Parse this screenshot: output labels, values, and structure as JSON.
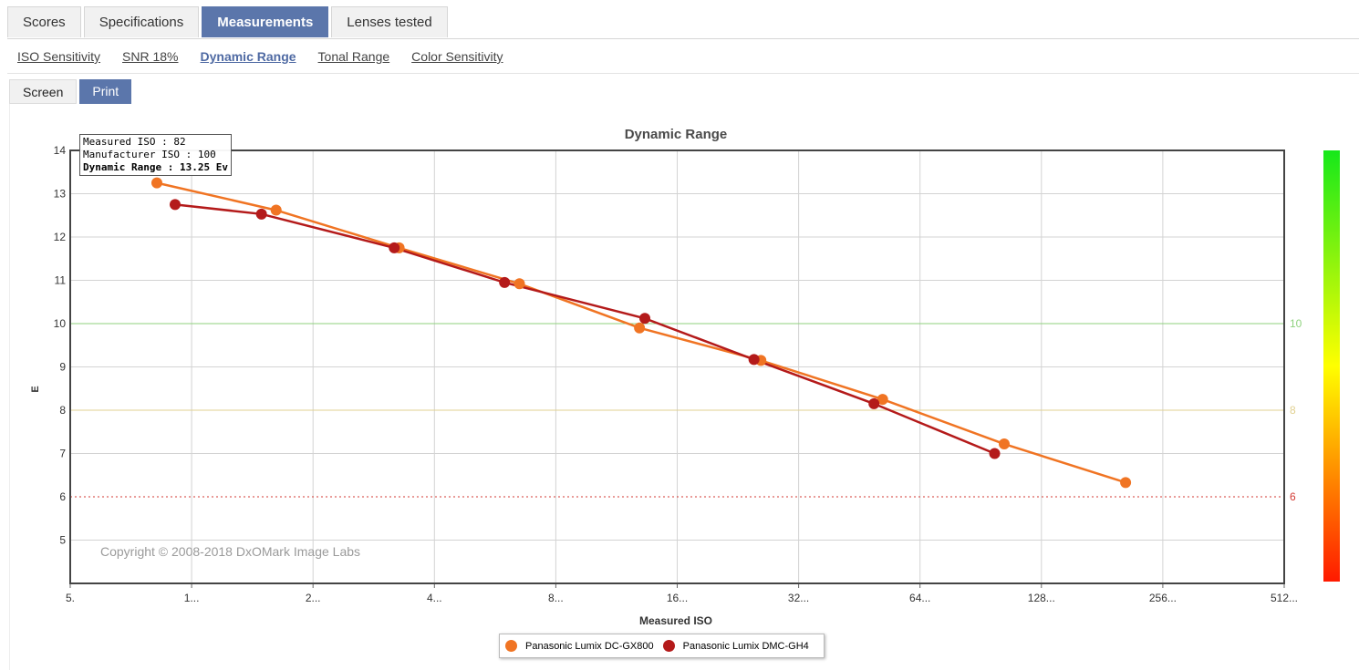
{
  "tabs": [
    {
      "label": "Scores",
      "active": false
    },
    {
      "label": "Specifications",
      "active": false
    },
    {
      "label": "Measurements",
      "active": true
    },
    {
      "label": "Lenses tested",
      "active": false
    }
  ],
  "subnav": [
    {
      "label": "ISO Sensitivity",
      "active": false
    },
    {
      "label": "SNR 18%",
      "active": false
    },
    {
      "label": "Dynamic Range",
      "active": true
    },
    {
      "label": "Tonal Range",
      "active": false
    },
    {
      "label": "Color Sensitivity",
      "active": false
    }
  ],
  "mode_toggle": {
    "screen_label": "Screen",
    "print_label": "Print",
    "active": "Print"
  },
  "tooltip": {
    "line1": "Measured ISO : 82",
    "line2": "Manufacturer ISO : 100",
    "line3": "Dynamic Range : 13.25 Ev"
  },
  "copyright": "Copyright © 2008-2018 DxOMark Image Labs",
  "colors": {
    "gx800": "#f07423",
    "gh4": "#b41a1a",
    "ref10": "#8fd27e",
    "ref8": "#e1d191",
    "ref6": "#d33a33"
  },
  "chart_data": {
    "type": "line",
    "title": "Dynamic Range",
    "xlabel": "Measured ISO",
    "ylabel": "E",
    "x_scale": "log2",
    "x_ticks": [
      50,
      100,
      200,
      400,
      800,
      1600,
      3200,
      6400,
      12800,
      25600,
      51200
    ],
    "x_tick_labels": [
      "5.",
      "1...",
      "2...",
      "4...",
      "8...",
      "16...",
      "32...",
      "64...",
      "128...",
      "256...",
      "512..."
    ],
    "xlim": [
      50,
      51200
    ],
    "ylim": [
      4,
      14
    ],
    "y_ticks": [
      5,
      6,
      7,
      8,
      9,
      10,
      11,
      12,
      13,
      14
    ],
    "reference_lines": [
      {
        "value": 10,
        "label": "10",
        "color": "#8fd27e"
      },
      {
        "value": 8,
        "label": "8",
        "color": "#e1d191"
      },
      {
        "value": 6,
        "label": "6",
        "color": "#d33a33"
      }
    ],
    "grid": true,
    "legend_position": "bottom-center",
    "series": [
      {
        "name": "Panasonic Lumix DC-GX800",
        "color": "#f07423",
        "x": [
          82,
          162,
          327,
          650,
          1290,
          2580,
          5170,
          10350,
          20700
        ],
        "y": [
          13.25,
          12.62,
          11.75,
          10.92,
          9.9,
          9.15,
          8.25,
          7.22,
          6.33
        ]
      },
      {
        "name": "Panasonic Lumix DMC-GH4",
        "color": "#b41a1a",
        "x": [
          91,
          149,
          318,
          597,
          1330,
          2480,
          4920,
          9800
        ],
        "y": [
          12.75,
          12.53,
          11.75,
          10.95,
          10.12,
          9.17,
          8.15,
          7.0
        ]
      }
    ]
  }
}
